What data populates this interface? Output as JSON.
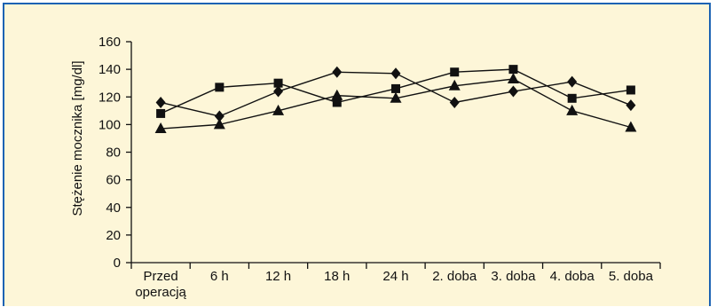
{
  "chart_data": {
    "type": "line",
    "title": "",
    "xlabel": "",
    "ylabel": "Stężenie mocznika [mg/dl]",
    "ylim": [
      0,
      160
    ],
    "yticks": [
      "0",
      "20",
      "40",
      "60",
      "80",
      "100",
      "120",
      "140",
      "160"
    ],
    "categories": [
      [
        "Przed",
        "operacją"
      ],
      [
        "6 h"
      ],
      [
        "12 h"
      ],
      [
        "18 h"
      ],
      [
        "24 h"
      ],
      [
        "2. doba"
      ],
      [
        "3. doba"
      ],
      [
        "4. doba"
      ],
      [
        "5. doba"
      ]
    ],
    "grid": false,
    "series": [
      {
        "marker": "diamond",
        "values": [
          116,
          106,
          124,
          138,
          137,
          116,
          124,
          131,
          114
        ]
      },
      {
        "marker": "square",
        "values": [
          108,
          127,
          130,
          116,
          126,
          138,
          140,
          119,
          125
        ]
      },
      {
        "marker": "triangle",
        "values": [
          97,
          100,
          110,
          121,
          119,
          128,
          133,
          110,
          98
        ]
      }
    ],
    "colors": {
      "frame": "#1c63b3",
      "background": "#fdf6d8",
      "ink": "#111111"
    }
  }
}
